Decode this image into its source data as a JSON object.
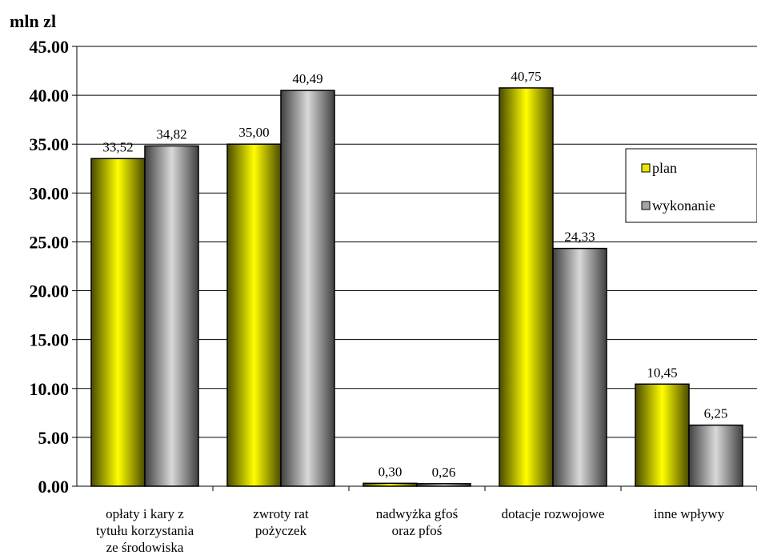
{
  "chart_data": {
    "type": "bar",
    "unit_label": "mln zl",
    "categories": [
      [
        "opłaty i kary z",
        "tytułu korzystania",
        "ze środowiska"
      ],
      [
        "zwroty   rat",
        "pożyczek"
      ],
      [
        "nadwyżka gfoś",
        "oraz pfoś"
      ],
      [
        "dotacje rozwojowe"
      ],
      [
        "inne wpływy"
      ]
    ],
    "series": [
      {
        "name": "plan",
        "values": [
          33.52,
          35.0,
          0.3,
          40.75,
          10.45
        ],
        "value_labels": [
          "33,52",
          "35,00",
          "0,30",
          "40,75",
          "10,45"
        ],
        "color": "#e8e800"
      },
      {
        "name": "wykonanie",
        "values": [
          34.82,
          40.49,
          0.26,
          24.33,
          6.25
        ],
        "value_labels": [
          "34,82",
          "40,49",
          "0,26",
          "24,33",
          "6,25"
        ],
        "color": "#a6a6a6"
      }
    ],
    "ylim": [
      0,
      45
    ],
    "yticks": [
      "0.00",
      "5.00",
      "10.00",
      "15.00",
      "20.00",
      "25.00",
      "30.00",
      "35.00",
      "40.00",
      "45.00"
    ],
    "grid": true,
    "legend_position": "right"
  }
}
